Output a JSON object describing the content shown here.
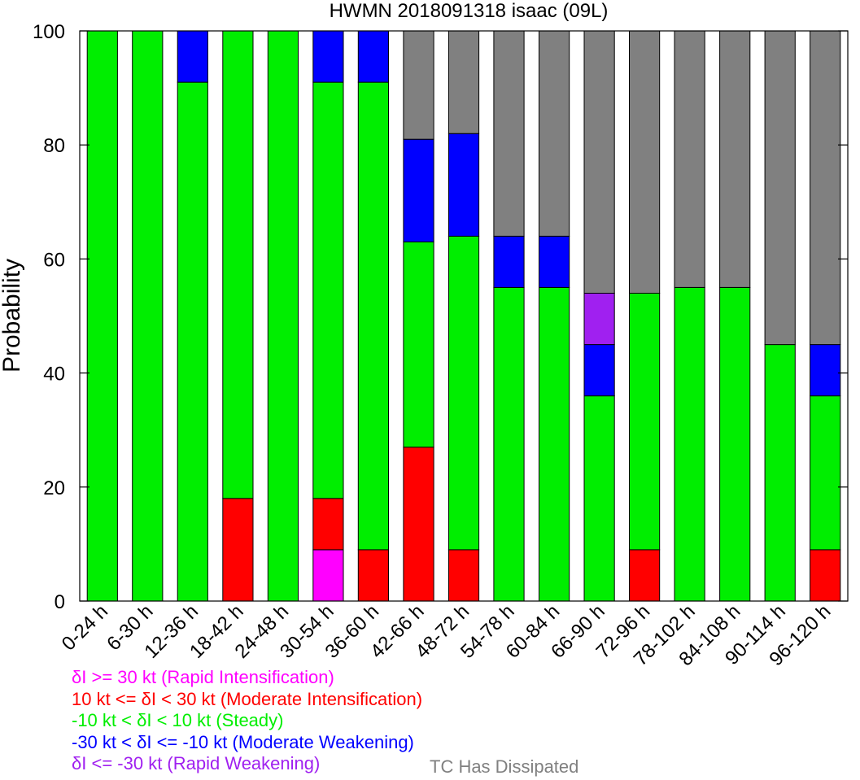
{
  "chart_data": {
    "type": "bar",
    "stacked": true,
    "title": "HWMN 2018091318 isaac (09L)",
    "xlabel": "",
    "ylabel": "Probability",
    "ylim": [
      0,
      100
    ],
    "yticks": [
      0,
      20,
      40,
      60,
      80,
      100
    ],
    "grid": false,
    "legend_position": "bottom",
    "categories": [
      "0-24 h",
      "6-30 h",
      "12-36 h",
      "18-42 h",
      "24-48 h",
      "30-54 h",
      "36-60 h",
      "42-66 h",
      "48-72 h",
      "54-78 h",
      "60-84 h",
      "66-90 h",
      "72-96 h",
      "78-102 h",
      "84-108 h",
      "90-114 h",
      "96-120 h"
    ],
    "series": [
      {
        "name": "δI >= 30 kt (Rapid Intensification)",
        "color": "#ff00ff",
        "values": [
          0,
          0,
          0,
          0,
          0,
          9,
          0,
          0,
          0,
          0,
          0,
          0,
          0,
          0,
          0,
          0,
          0
        ]
      },
      {
        "name": "10 kt <= δI < 30 kt (Moderate Intensification)",
        "color": "#ff0000",
        "values": [
          0,
          0,
          0,
          18,
          0,
          9,
          9,
          27,
          9,
          0,
          0,
          0,
          9,
          0,
          0,
          0,
          9
        ]
      },
      {
        "name": "-10 kt < δI < 10 kt (Steady)",
        "color": "#00ee00",
        "values": [
          100,
          100,
          91,
          82,
          100,
          73,
          82,
          36,
          55,
          55,
          55,
          36,
          45,
          55,
          55,
          45,
          27
        ]
      },
      {
        "name": "-30 kt < δI <= -10 kt (Moderate Weakening)",
        "color": "#0000ff",
        "values": [
          0,
          0,
          9,
          0,
          0,
          9,
          9,
          18,
          18,
          9,
          9,
          9,
          0,
          0,
          0,
          0,
          9
        ]
      },
      {
        "name": "δI <= -30 kt (Rapid Weakening)",
        "color": "#a020f0",
        "values": [
          0,
          0,
          0,
          0,
          0,
          0,
          0,
          0,
          0,
          0,
          0,
          9,
          0,
          0,
          0,
          0,
          0
        ]
      },
      {
        "name": "TC Has Dissipated",
        "color": "#808080",
        "values": [
          0,
          0,
          0,
          0,
          0,
          0,
          0,
          19,
          18,
          36,
          36,
          46,
          46,
          45,
          45,
          55,
          55
        ]
      }
    ]
  },
  "legend": {
    "ri": "δI >= 30 kt (Rapid Intensification)",
    "mi": "10 kt <= δI < 30 kt (Moderate Intensification)",
    "steady": "-10 kt < δI < 10 kt (Steady)",
    "mw": "-30 kt < δI <= -10 kt (Moderate Weakening)",
    "rw": "δI <= -30 kt (Rapid Weakening)",
    "dissipated": "TC Has Dissipated"
  }
}
